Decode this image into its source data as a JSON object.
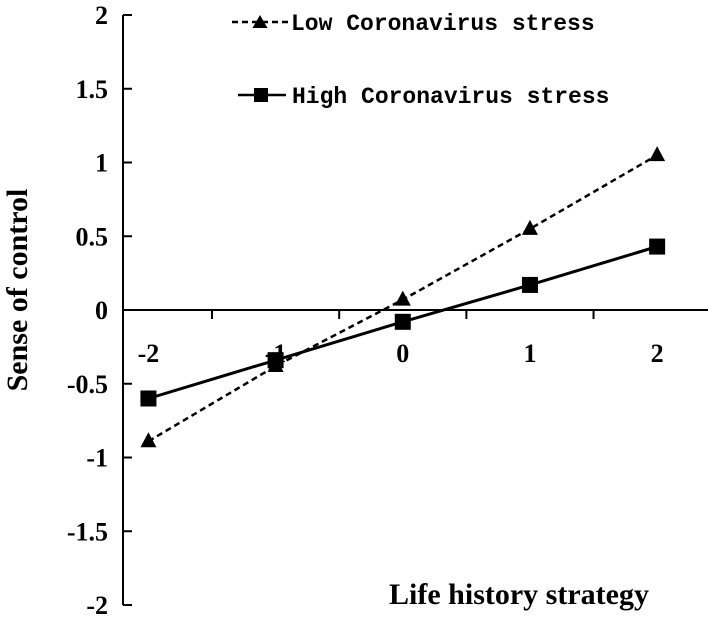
{
  "chart_data": {
    "type": "line",
    "title": "",
    "xlabel": "Life history strategy",
    "ylabel": "Sense of control",
    "x": [
      -2,
      -1,
      0,
      1,
      2
    ],
    "xlim": [
      -2.2,
      2.4
    ],
    "ylim": [
      -2,
      2
    ],
    "x_ticks": [
      "-2",
      "-1",
      "0",
      "1",
      "2"
    ],
    "y_ticks": [
      "2",
      "1.5",
      "1",
      "0.5",
      "0",
      "-0.5",
      "-1",
      "-1.5",
      "-2"
    ],
    "grid": false,
    "legend_position": "top-right",
    "series": [
      {
        "name": "Low Coronavirus stress",
        "values": [
          -0.89,
          -0.38,
          0.07,
          0.55,
          1.05
        ],
        "line_style": "dashed",
        "marker": "triangle",
        "color": "#000000"
      },
      {
        "name": "High Coronavirus stress",
        "values": [
          -0.6,
          -0.34,
          -0.08,
          0.17,
          0.43
        ],
        "line_style": "solid",
        "marker": "square",
        "color": "#000000"
      }
    ]
  }
}
